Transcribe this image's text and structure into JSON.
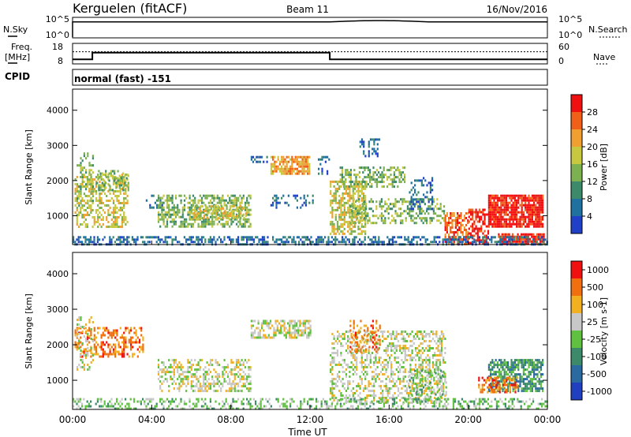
{
  "header": {
    "station": "Kerguelen (fitACF)",
    "beam": "Beam 11",
    "date": "16/Nov/2016"
  },
  "noise_panel": {
    "left_label": "N.Sky",
    "right_label": "N.Search",
    "tick_top": "10^5",
    "tick_bottom": "10^0",
    "sky_level_exp": 4.0,
    "search_level_exp": 4.0
  },
  "freq_panel": {
    "left_label_line1": "Freq.",
    "left_label_line2": "[MHz]",
    "right_label": "Nave",
    "freq_ticks": [
      "18",
      "8"
    ],
    "freq_range": [
      8,
      18
    ],
    "nave_ticks": [
      "60",
      "0"
    ],
    "nave_range": [
      0,
      60
    ],
    "cpid_label": "CPID",
    "mode_label": "normal (fast) -151",
    "freq_steps": [
      [
        0,
        10
      ],
      [
        1,
        13.5
      ],
      [
        13,
        10
      ],
      [
        24,
        10
      ]
    ],
    "nave_level": 36
  },
  "power_panel": {
    "ylabel": "Slant Range [km]",
    "yticks": [
      "4000",
      "3000",
      "2000",
      "1000"
    ],
    "ytick_values": [
      4000,
      3000,
      2000,
      1000
    ],
    "yrange": [
      180,
      4600
    ],
    "colorbar_label": "Power [dB]",
    "colorbar_ticks": [
      "28",
      "24",
      "20",
      "16",
      "12",
      "8",
      "4"
    ],
    "colorbar_tick_values": [
      28,
      24,
      20,
      16,
      12,
      8,
      4
    ],
    "colorbar_range": [
      0,
      32
    ],
    "colors": [
      "#2040c8",
      "#2070a0",
      "#3c8a6a",
      "#7cb050",
      "#c8c840",
      "#f0a030",
      "#f06018",
      "#f01010"
    ]
  },
  "velocity_panel": {
    "ylabel": "Slant Range [km]",
    "yticks": [
      "4000",
      "3000",
      "2000",
      "1000"
    ],
    "ytick_values": [
      4000,
      3000,
      2000,
      1000
    ],
    "yrange": [
      180,
      4600
    ],
    "colorbar_label": "Velocity [m s-1]",
    "colorbar_ticks": [
      "1000",
      "500",
      "100",
      "25",
      "-25",
      "-100",
      "-500",
      "-1000"
    ],
    "colors": [
      "#2040c0",
      "#2a6aa0",
      "#3c8a6a",
      "#60c040",
      "#c8c8c8",
      "#f0b020",
      "#f07010",
      "#f01010"
    ]
  },
  "x_axis": {
    "label": "Time UT",
    "ticks": [
      "00:00",
      "04:00",
      "08:00",
      "12:00",
      "16:00",
      "20:00",
      "00:00"
    ],
    "tick_hours": [
      0,
      4,
      8,
      12,
      16,
      20,
      24
    ],
    "range_hours": [
      0,
      24
    ]
  },
  "chart_data": {
    "type": "heatmap",
    "title": "Kerguelen (fitACF)   Beam 11   16/Nov/2016",
    "xlabel": "Time UT",
    "ylabel": "Slant Range [km]",
    "xlim_hours": [
      0,
      24
    ],
    "ylim_km": [
      180,
      4600
    ],
    "power_regions": [
      {
        "t0": 0.1,
        "t1": 2.8,
        "r0": 700,
        "r1": 2200,
        "level": 4,
        "density": 0.45
      },
      {
        "t0": 0.2,
        "t1": 1.0,
        "r0": 1300,
        "r1": 2800,
        "level": 3,
        "density": 0.35
      },
      {
        "t0": 1.2,
        "t1": 2.8,
        "r0": 1700,
        "r1": 2300,
        "level": 3,
        "density": 0.4
      },
      {
        "t0": 3.7,
        "t1": 4.5,
        "r0": 1200,
        "r1": 1600,
        "level": 1,
        "density": 0.35
      },
      {
        "t0": 4.3,
        "t1": 9.0,
        "r0": 700,
        "r1": 1600,
        "level": 3,
        "density": 0.55
      },
      {
        "t0": 6.0,
        "t1": 8.8,
        "r0": 900,
        "r1": 1300,
        "level": 4,
        "density": 0.55
      },
      {
        "t0": 9.0,
        "t1": 9.8,
        "r0": 2500,
        "r1": 2700,
        "level": 1,
        "density": 0.5
      },
      {
        "t0": 10.0,
        "t1": 12.0,
        "r0": 2200,
        "r1": 2700,
        "level": 5,
        "density": 0.7
      },
      {
        "t0": 10.0,
        "t1": 12.2,
        "r0": 1200,
        "r1": 1600,
        "level": 1,
        "density": 0.25
      },
      {
        "t0": 12.4,
        "t1": 13.0,
        "r0": 2200,
        "r1": 2700,
        "level": 1,
        "density": 0.4
      },
      {
        "t0": 13.0,
        "t1": 14.8,
        "r0": 500,
        "r1": 2000,
        "level": 4,
        "density": 0.6
      },
      {
        "t0": 13.5,
        "t1": 16.8,
        "r0": 1800,
        "r1": 2400,
        "level": 3,
        "density": 0.45
      },
      {
        "t0": 14.5,
        "t1": 15.5,
        "r0": 2700,
        "r1": 3200,
        "level": 1,
        "density": 0.3
      },
      {
        "t0": 14.0,
        "t1": 18.8,
        "r0": 800,
        "r1": 1500,
        "level": 3,
        "density": 0.45
      },
      {
        "t0": 17.0,
        "t1": 18.2,
        "r0": 1200,
        "r1": 2100,
        "level": 1,
        "density": 0.35
      },
      {
        "t0": 18.8,
        "t1": 20.0,
        "r0": 200,
        "r1": 1100,
        "level": 6,
        "density": 0.6
      },
      {
        "t0": 20.0,
        "t1": 21.0,
        "r0": 200,
        "r1": 1200,
        "level": 7,
        "density": 0.55
      },
      {
        "t0": 21.0,
        "t1": 23.8,
        "r0": 700,
        "r1": 1600,
        "level": 7,
        "density": 0.85
      },
      {
        "t0": 21.5,
        "t1": 23.8,
        "r0": 200,
        "r1": 500,
        "level": 7,
        "density": 0.85
      },
      {
        "t0": 0.0,
        "t1": 24.0,
        "r0": 180,
        "r1": 420,
        "level": 1,
        "density": 0.5
      }
    ],
    "velocity_regions": [
      {
        "t0": 0.1,
        "t1": 3.6,
        "r0": 1700,
        "r1": 2500,
        "level": 6,
        "density": 0.45
      },
      {
        "t0": 0.2,
        "t1": 1.0,
        "r0": 1300,
        "r1": 2800,
        "level": 4,
        "density": 0.3
      },
      {
        "t0": 4.3,
        "t1": 9.0,
        "r0": 700,
        "r1": 1600,
        "level": 4,
        "density": 0.45
      },
      {
        "t0": 9.0,
        "t1": 12.0,
        "r0": 2200,
        "r1": 2700,
        "level": 4,
        "density": 0.6
      },
      {
        "t0": 13.0,
        "t1": 18.8,
        "r0": 400,
        "r1": 2400,
        "level": 4,
        "density": 0.4
      },
      {
        "t0": 14.0,
        "t1": 15.5,
        "r0": 1800,
        "r1": 2700,
        "level": 6,
        "density": 0.3
      },
      {
        "t0": 17.0,
        "t1": 19.0,
        "r0": 400,
        "r1": 1300,
        "level": 3,
        "density": 0.35
      },
      {
        "t0": 21.0,
        "t1": 23.8,
        "r0": 700,
        "r1": 1600,
        "level": 2,
        "density": 0.7
      },
      {
        "t0": 20.5,
        "t1": 22.5,
        "r0": 700,
        "r1": 1100,
        "level": 6,
        "density": 0.5
      },
      {
        "t0": 0.0,
        "t1": 24.0,
        "r0": 180,
        "r1": 500,
        "level": 3,
        "density": 0.35
      }
    ]
  }
}
